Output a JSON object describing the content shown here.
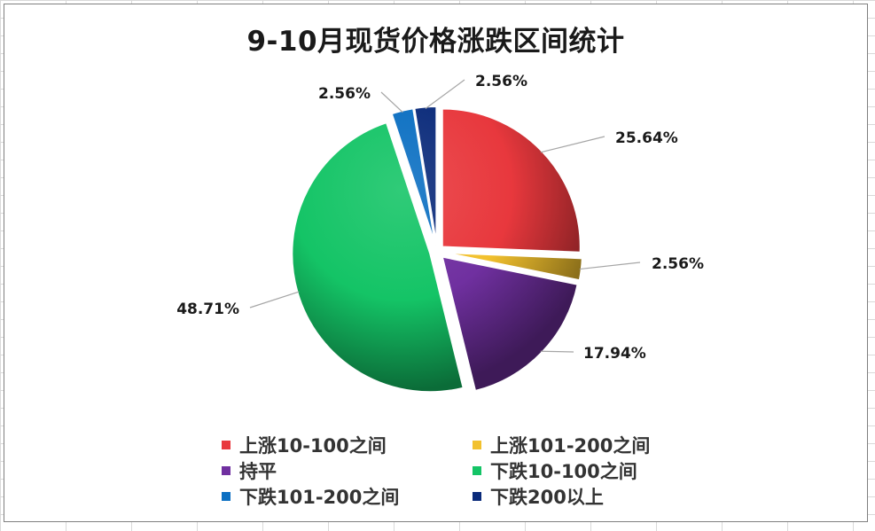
{
  "chart_data": {
    "type": "pie",
    "title": "9-10月现货价格涨跌区间统计",
    "categories": [
      "上涨10-100之间",
      "上涨101-200之间",
      "持平",
      "下跌10-100之间",
      "下跌101-200之间",
      "下跌200以上"
    ],
    "values": [
      25.64,
      2.56,
      17.94,
      48.71,
      2.56,
      2.56
    ],
    "data_labels": [
      "25.64%",
      "2.56%",
      "17.94%",
      "48.71%",
      "2.56%",
      "2.56%"
    ],
    "colors": [
      "#e8383d",
      "#f2c12e",
      "#7030a0",
      "#14c466",
      "#0b6fc2",
      "#0a2a7a"
    ],
    "legend_position": "bottom",
    "exploded": true
  }
}
